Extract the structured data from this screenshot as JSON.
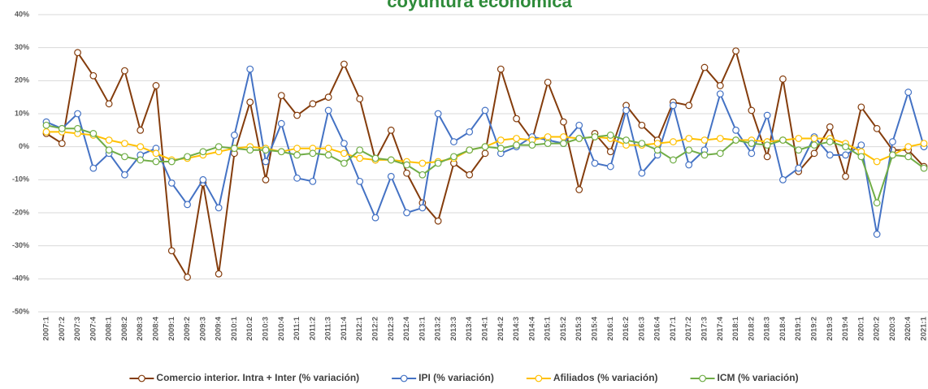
{
  "chart_data": {
    "type": "line",
    "title": "coyuntura económica",
    "categories": [
      "2007:1",
      "2007:2",
      "2007:3",
      "2007:4",
      "2008:1",
      "2008:2",
      "2008:3",
      "2008:4",
      "2009:1",
      "2009:2",
      "2009:3",
      "2009:4",
      "2010:1",
      "2010:2",
      "2010:3",
      "2010:4",
      "2011:1",
      "2011:2",
      "2011:3",
      "2011:4",
      "2012:1",
      "2012:2",
      "2012:3",
      "2012:4",
      "2013:1",
      "2013:2",
      "2013:3",
      "2013:4",
      "2014:1",
      "2014:2",
      "2014:3",
      "2014:4",
      "2015:1",
      "2015:2",
      "2015:3",
      "2015:4",
      "2016:1",
      "2016:2",
      "2016:3",
      "2016:4",
      "2017:1",
      "2017:2",
      "2017:3",
      "2017:4",
      "2018:1",
      "2018:2",
      "2018:3",
      "2018:4",
      "2019:1",
      "2019:2",
      "2019:3",
      "2019:4",
      "2020:1",
      "2020:2",
      "2020:3",
      "2020:4",
      "2021:1"
    ],
    "series": [
      {
        "name": "Comercio interior. Intra + Inter (% variación)",
        "color": "#843c0c",
        "values": [
          4,
          1,
          28.5,
          21.5,
          13,
          23,
          5,
          18.5,
          -31.5,
          -39.5,
          -11,
          -38.5,
          -2,
          13.5,
          -10,
          15.5,
          9.5,
          13,
          15,
          25,
          14.5,
          -4,
          5,
          -8,
          -17,
          -22.5,
          -5,
          -8.5,
          -2,
          23.5,
          8.5,
          2,
          19.5,
          7.5,
          -13,
          4,
          -1.5,
          12.5,
          6.5,
          2,
          13.5,
          12.5,
          24,
          18.5,
          29,
          11,
          -3,
          20.5,
          -7.5,
          -2,
          6,
          -9,
          12,
          5.5,
          -1,
          -1,
          -6
        ]
      },
      {
        "name": "IPI (% variación)",
        "color": "#4472c4",
        "values": [
          7.5,
          5.5,
          10,
          -6.5,
          -2,
          -8.5,
          -2.5,
          -0.5,
          -11,
          -17.5,
          -10,
          -18.5,
          3.5,
          23.5,
          -4.5,
          7,
          -9.5,
          -10.5,
          11,
          1,
          -10.5,
          -21.5,
          -9,
          -20,
          -18.5,
          10,
          1.5,
          4.5,
          11,
          -2,
          0,
          3,
          2,
          1,
          6.5,
          -5,
          -6,
          11,
          -8,
          -2.5,
          12.5,
          -5.5,
          -1,
          16,
          5,
          -2,
          9.5,
          -10,
          -6.5,
          3,
          -2.5,
          -2.5,
          0.5,
          -26.5,
          1.5,
          16.5,
          0
        ]
      },
      {
        "name": "Afiliados (% variación)",
        "color": "#ffc000",
        "values": [
          4.5,
          4.5,
          4,
          3.5,
          2,
          1,
          0,
          -2,
          -4,
          -3.5,
          -2.5,
          -1.5,
          -0.5,
          0,
          -0.5,
          -1.5,
          -0.5,
          -0.5,
          -0.5,
          -2,
          -3.5,
          -4,
          -4,
          -4.5,
          -5,
          -4.5,
          -3.5,
          -1,
          0,
          2,
          2.5,
          2,
          3,
          3,
          2.5,
          3,
          2.5,
          0.5,
          0.5,
          1,
          1.5,
          2.5,
          2,
          2.5,
          2,
          2,
          1.5,
          2,
          2.5,
          2.5,
          2.5,
          1,
          -1.5,
          -4.5,
          -2.5,
          0,
          1
        ]
      },
      {
        "name": "ICM (% variación)",
        "color": "#70ad47",
        "values": [
          6.5,
          5.5,
          5.5,
          4,
          -1,
          -3,
          -4,
          -4.5,
          -4.5,
          -3,
          -1.5,
          0,
          -0.5,
          -1,
          -1,
          -1.5,
          -2.5,
          -2,
          -2.5,
          -5,
          -1,
          -3.5,
          -4,
          -5.5,
          -8.5,
          -5,
          -3,
          -1,
          0,
          -0.5,
          0.5,
          0.5,
          1,
          1,
          2.5,
          3,
          3.5,
          2,
          1,
          -1,
          -4,
          -1,
          -2.5,
          -2,
          2,
          1,
          0.5,
          2,
          -1,
          0.5,
          1.5,
          0,
          -3,
          -17,
          -2.5,
          -3,
          -6.5
        ]
      }
    ],
    "ylim": [
      -50,
      40
    ],
    "yticks": [
      {
        "value": -50,
        "label": "-50%"
      },
      {
        "value": -40,
        "label": "-40%"
      },
      {
        "value": -30,
        "label": "-30%"
      },
      {
        "value": -20,
        "label": "-20%"
      },
      {
        "value": -10,
        "label": "-10%"
      },
      {
        "value": 0,
        "label": "0%"
      },
      {
        "value": 10,
        "label": "10%"
      },
      {
        "value": 20,
        "label": "20%"
      },
      {
        "value": 30,
        "label": "30%"
      },
      {
        "value": 40,
        "label": "40%"
      }
    ],
    "grid": true
  }
}
